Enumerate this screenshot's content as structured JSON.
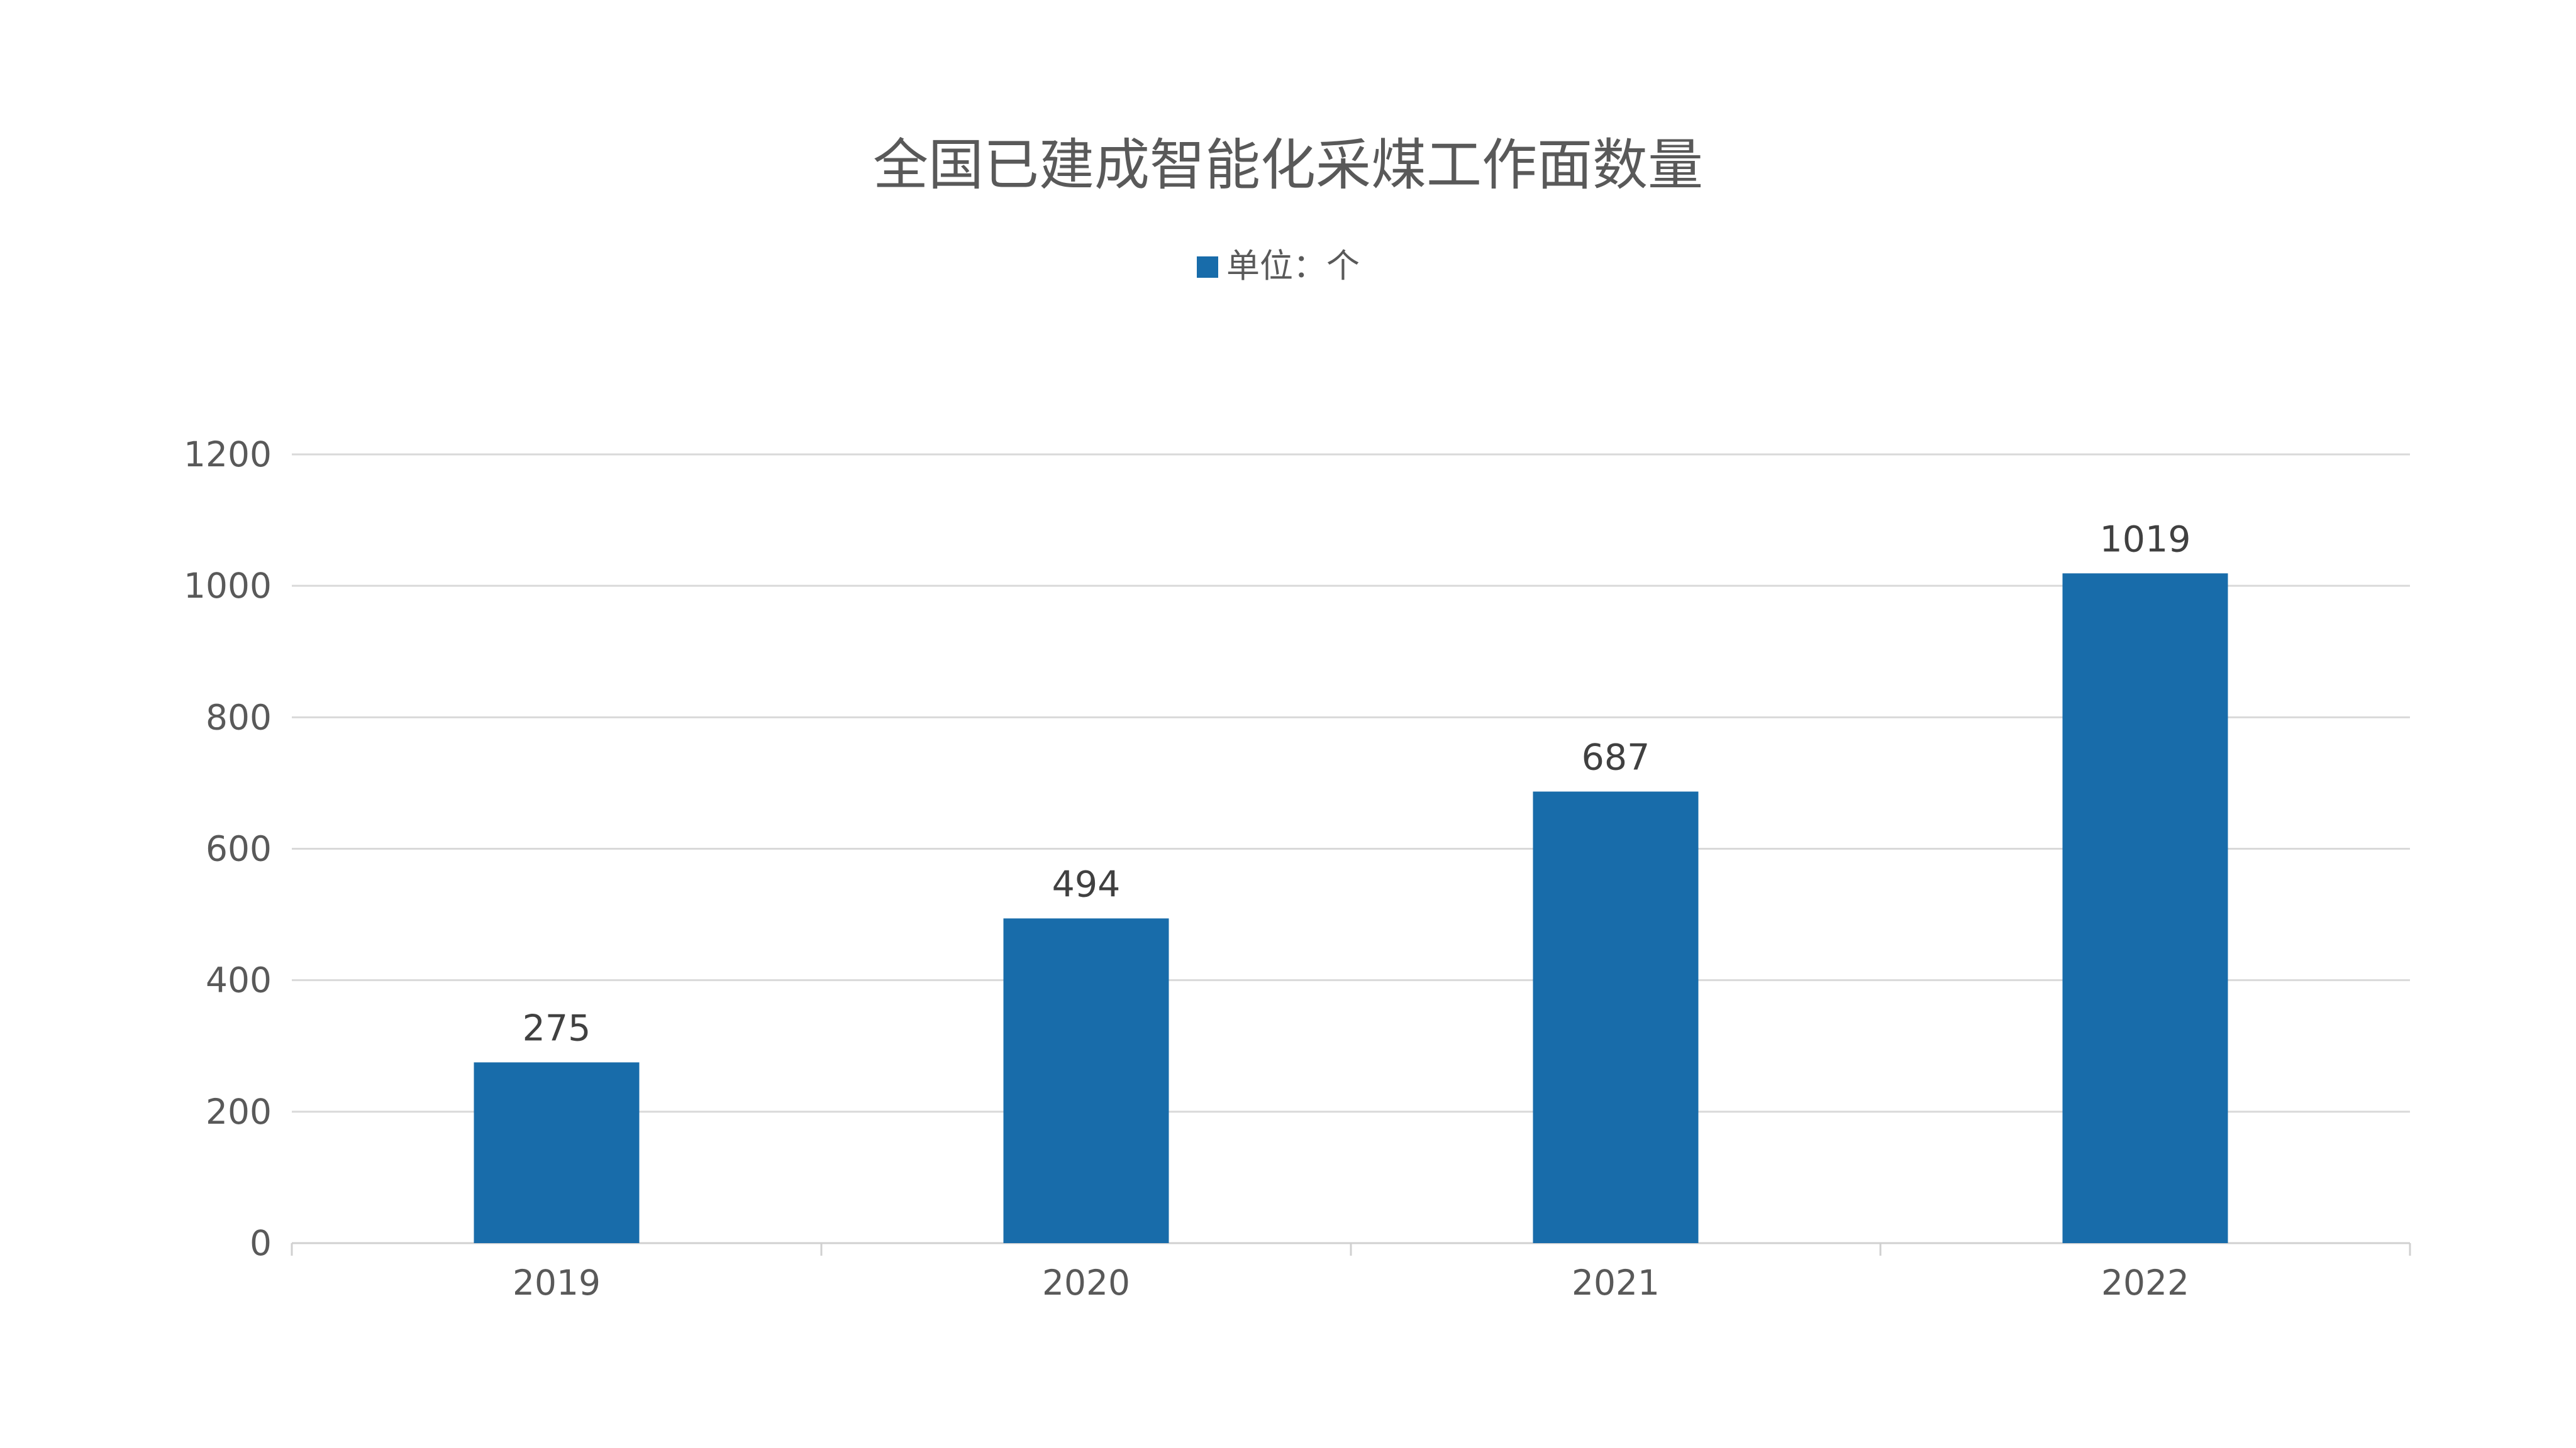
{
  "chart_data": {
    "type": "bar",
    "title": "全国已建成智能化采煤工作面数量",
    "categories": [
      "2019",
      "2020",
      "2021",
      "2022"
    ],
    "series": [
      {
        "name": "单位：个",
        "values": [
          275,
          494,
          687,
          1019
        ],
        "color": "#186caa"
      }
    ],
    "ylim": [
      0,
      1200
    ],
    "yticks": [
      0,
      200,
      400,
      600,
      800,
      1000,
      1200
    ],
    "xlabel": "",
    "ylabel": "",
    "grid": true,
    "legend_position": "top-center",
    "data_labels": true
  }
}
